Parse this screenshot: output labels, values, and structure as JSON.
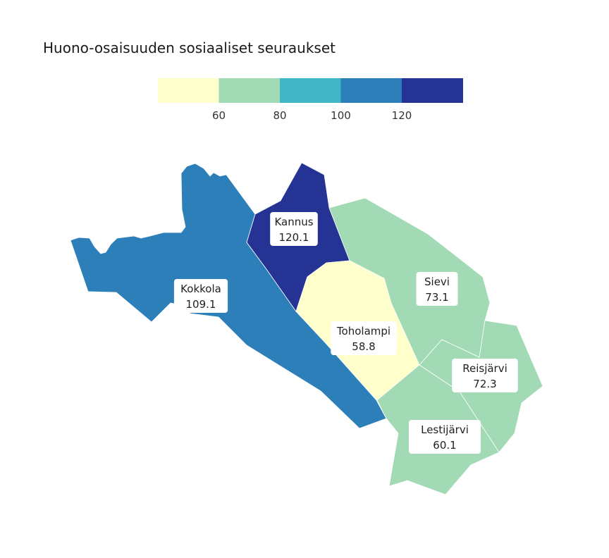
{
  "title": "Huono-osaisuuden sosiaaliset seuraukset",
  "legend": {
    "colors": [
      "#ffffcc",
      "#a1dab4",
      "#41b6c4",
      "#2c7fb8",
      "#253494"
    ],
    "breaks": [
      60,
      80,
      100,
      120
    ],
    "tick_labels": [
      "60",
      "80",
      "100",
      "120"
    ]
  },
  "regions": [
    {
      "id": "kokkola",
      "name": "Kokkola",
      "value": 109.1,
      "value_label": "109.1",
      "color": "#2c7fb8"
    },
    {
      "id": "kannus",
      "name": "Kannus",
      "value": 120.1,
      "value_label": "120.1",
      "color": "#253494"
    },
    {
      "id": "toholampi",
      "name": "Toholampi",
      "value": 58.8,
      "value_label": "58.8",
      "color": "#ffffcc"
    },
    {
      "id": "sievi",
      "name": "Sievi",
      "value": 73.1,
      "value_label": "73.1",
      "color": "#a1dab4"
    },
    {
      "id": "reisjarvi",
      "name": "Reisjärvi",
      "value": 72.3,
      "value_label": "72.3",
      "color": "#a1dab4"
    },
    {
      "id": "lestijarvi",
      "name": "Lestijärvi",
      "value": 60.1,
      "value_label": "60.1",
      "color": "#a1dab4"
    }
  ]
}
